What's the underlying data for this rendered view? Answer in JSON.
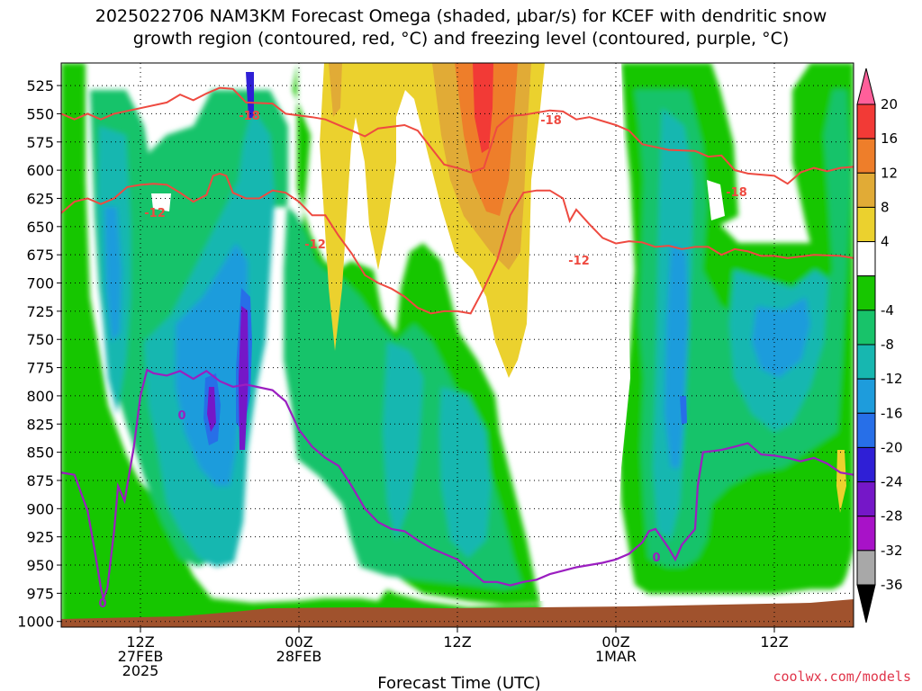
{
  "chart_data": {
    "type": "heatmap",
    "title_line1": "2025022706 NAM3KM Forecast Omega (shaded, μbar/s) for KCEF with dendritic snow",
    "title_line2": "growth region (contoured, red, °C) and freezing level (contoured, purple, °C)",
    "xlabel": "Forecast Time (UTC)",
    "credit": "coolwx.com/models",
    "y_axis": {
      "ticks": [
        525,
        550,
        575,
        600,
        625,
        650,
        675,
        700,
        725,
        750,
        775,
        800,
        825,
        850,
        875,
        900,
        925,
        950,
        975,
        1000
      ],
      "range": [
        1005,
        505
      ],
      "unit": "hPa"
    },
    "x_axis": {
      "range_hours": [
        0,
        60
      ],
      "ticks": [
        {
          "hour": 6,
          "lines": [
            "12Z",
            "27FEB",
            "2025"
          ]
        },
        {
          "hour": 18,
          "lines": [
            "00Z",
            "28FEB"
          ]
        },
        {
          "hour": 30,
          "lines": [
            "12Z"
          ]
        },
        {
          "hour": 42,
          "lines": [
            "00Z",
            "1MAR"
          ]
        },
        {
          "hour": 54,
          "lines": [
            "12Z"
          ]
        }
      ]
    },
    "colorbar": {
      "labels": [
        "20",
        "16",
        "12",
        "8",
        "4",
        "-4",
        "-8",
        "-12",
        "-16",
        "-20",
        "-24",
        "-28",
        "-32",
        "-36"
      ],
      "bins": [
        {
          "color": "#ff5f9a"
        },
        {
          "color": "#f23a36"
        },
        {
          "color": "#ee7e2a"
        },
        {
          "color": "#e1ab36"
        },
        {
          "color": "#ebd12e"
        },
        {
          "color": "#ffffff"
        },
        {
          "color": "#17c600"
        },
        {
          "color": "#18c36a"
        },
        {
          "color": "#17b7b0"
        },
        {
          "color": "#1e9cdc"
        },
        {
          "color": "#276fe8"
        },
        {
          "color": "#2f1fd6"
        },
        {
          "color": "#7517c8"
        },
        {
          "color": "#a812c8"
        },
        {
          "color": "#a8a8a8"
        },
        {
          "color": "#000000"
        }
      ]
    },
    "contours": {
      "dgz_color": "#ee4a40",
      "freezing_color": "#9b1ec0",
      "dgz_labels": [
        "-18",
        "-18",
        "-18",
        "-12",
        "-12",
        "-12"
      ],
      "freezing_labels": [
        "0",
        "0",
        "0"
      ],
      "minus18": [
        [
          0,
          550
        ],
        [
          1,
          555
        ],
        [
          2,
          550
        ],
        [
          3,
          555
        ],
        [
          4,
          550
        ],
        [
          6,
          545
        ],
        [
          8,
          540
        ],
        [
          9,
          533
        ],
        [
          10,
          538
        ],
        [
          11,
          532
        ],
        [
          12,
          527
        ],
        [
          13,
          528
        ],
        [
          14,
          540
        ],
        [
          16,
          541
        ],
        [
          17,
          550
        ],
        [
          19,
          553
        ],
        [
          20,
          555
        ],
        [
          22,
          565
        ],
        [
          23,
          570
        ],
        [
          24,
          563
        ],
        [
          26,
          560
        ],
        [
          27,
          565
        ],
        [
          28,
          580
        ],
        [
          29,
          595
        ],
        [
          30,
          598
        ],
        [
          31,
          602
        ],
        [
          32,
          598
        ],
        [
          33,
          562
        ],
        [
          34,
          552
        ],
        [
          35,
          551
        ],
        [
          37,
          547
        ],
        [
          38,
          548
        ],
        [
          39,
          555
        ],
        [
          40,
          553
        ],
        [
          42,
          560
        ],
        [
          43,
          565
        ],
        [
          44,
          577
        ],
        [
          46,
          582
        ],
        [
          48,
          583
        ],
        [
          49,
          588
        ],
        [
          50,
          587
        ],
        [
          51,
          600
        ],
        [
          52,
          603
        ],
        [
          54,
          605
        ],
        [
          55,
          612
        ],
        [
          56,
          602
        ],
        [
          57,
          598
        ],
        [
          58,
          601
        ],
        [
          59,
          598
        ],
        [
          60,
          597
        ]
      ],
      "minus12": [
        [
          0,
          638
        ],
        [
          1,
          628
        ],
        [
          2,
          625
        ],
        [
          3,
          630
        ],
        [
          4,
          625
        ],
        [
          5,
          615
        ],
        [
          6,
          613
        ],
        [
          7,
          612
        ],
        [
          8,
          613
        ],
        [
          9,
          620
        ],
        [
          10,
          628
        ],
        [
          11,
          622
        ],
        [
          11.5,
          605
        ],
        [
          12,
          603
        ],
        [
          12.5,
          605
        ],
        [
          13,
          620
        ],
        [
          14,
          625
        ],
        [
          15,
          625
        ],
        [
          16,
          618
        ],
        [
          17,
          620
        ],
        [
          18,
          628
        ],
        [
          19,
          640
        ],
        [
          20,
          640
        ],
        [
          21,
          658
        ],
        [
          22,
          674
        ],
        [
          23,
          693
        ],
        [
          24,
          700
        ],
        [
          25,
          705
        ],
        [
          26,
          712
        ],
        [
          27,
          722
        ],
        [
          28,
          727
        ],
        [
          29,
          725
        ],
        [
          30,
          725
        ],
        [
          31,
          727
        ],
        [
          32,
          705
        ],
        [
          33,
          680
        ],
        [
          34,
          640
        ],
        [
          35,
          620
        ],
        [
          36,
          618
        ],
        [
          37,
          618
        ],
        [
          38,
          625
        ],
        [
          38.5,
          645
        ],
        [
          39,
          635
        ],
        [
          40,
          648
        ],
        [
          41,
          660
        ],
        [
          42,
          665
        ],
        [
          43,
          663
        ],
        [
          44,
          664
        ],
        [
          45,
          668
        ],
        [
          46,
          667
        ],
        [
          47,
          670
        ],
        [
          48,
          668
        ],
        [
          49,
          668
        ],
        [
          50,
          675
        ],
        [
          51,
          670
        ],
        [
          52,
          672
        ],
        [
          53,
          676
        ],
        [
          54,
          676
        ],
        [
          55,
          678
        ],
        [
          57,
          675
        ],
        [
          59,
          676
        ],
        [
          60,
          678
        ]
      ],
      "freezing": [
        [
          0,
          868
        ],
        [
          1,
          870
        ],
        [
          2,
          902
        ],
        [
          2.5,
          935
        ],
        [
          3,
          970
        ],
        [
          3.2,
          980
        ],
        [
          3.5,
          970
        ],
        [
          4,
          920
        ],
        [
          4.3,
          880
        ],
        [
          4.8,
          893
        ],
        [
          5.5,
          845
        ],
        [
          6,
          800
        ],
        [
          6.5,
          777
        ],
        [
          7,
          780
        ],
        [
          8,
          782
        ],
        [
          9,
          778
        ],
        [
          10,
          785
        ],
        [
          11,
          778
        ],
        [
          12,
          787
        ],
        [
          13,
          792
        ],
        [
          14,
          790
        ],
        [
          16,
          795
        ],
        [
          17,
          805
        ],
        [
          18,
          830
        ],
        [
          19,
          845
        ],
        [
          20,
          855
        ],
        [
          21,
          862
        ],
        [
          22,
          880
        ],
        [
          23,
          900
        ],
        [
          24,
          912
        ],
        [
          25,
          918
        ],
        [
          26,
          920
        ],
        [
          27,
          928
        ],
        [
          28,
          935
        ],
        [
          29,
          940
        ],
        [
          30,
          945
        ],
        [
          31,
          955
        ],
        [
          32,
          965
        ],
        [
          33,
          965
        ],
        [
          34,
          968
        ],
        [
          35,
          965
        ],
        [
          36,
          963
        ],
        [
          37,
          958
        ],
        [
          38,
          955
        ],
        [
          39,
          952
        ],
        [
          40,
          950
        ],
        [
          41,
          948
        ],
        [
          42,
          945
        ],
        [
          43,
          940
        ],
        [
          44,
          930
        ],
        [
          44.5,
          920
        ],
        [
          45,
          918
        ],
        [
          46,
          935
        ],
        [
          46.5,
          945
        ],
        [
          47,
          932
        ],
        [
          48,
          918
        ],
        [
          48.2,
          880
        ],
        [
          48.6,
          850
        ],
        [
          50,
          848
        ],
        [
          51,
          845
        ],
        [
          52,
          842
        ],
        [
          53,
          852
        ],
        [
          54,
          853
        ],
        [
          55,
          855
        ],
        [
          56,
          858
        ],
        [
          57,
          855
        ],
        [
          58,
          860
        ],
        [
          59,
          868
        ],
        [
          60,
          870
        ]
      ]
    }
  }
}
